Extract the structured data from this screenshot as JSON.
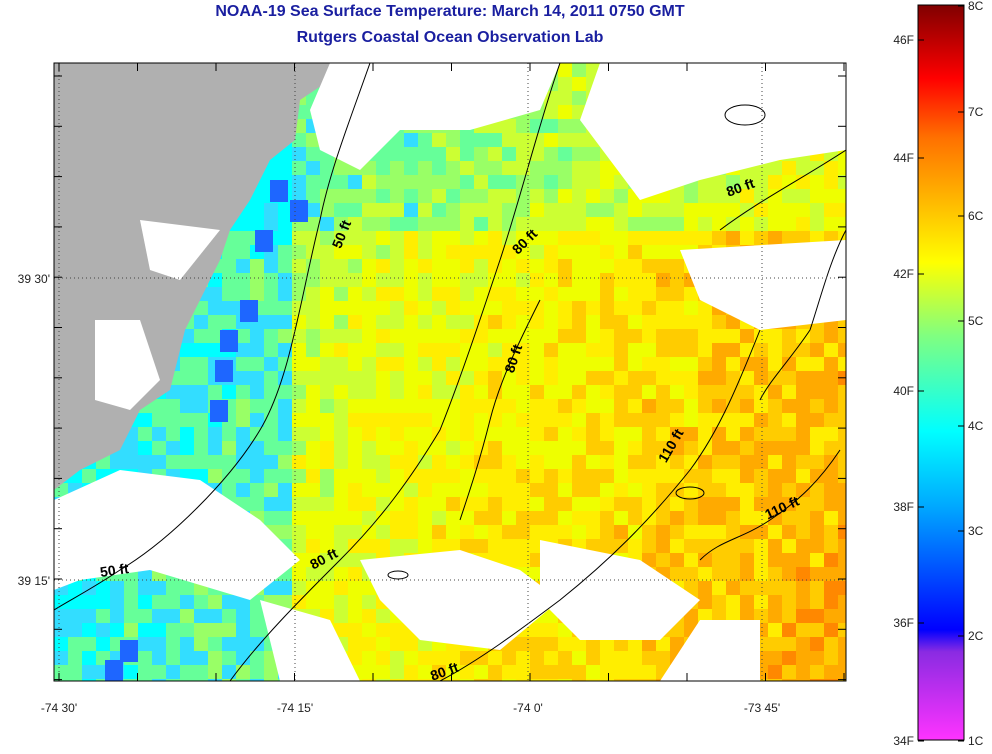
{
  "header": {
    "title": "NOAA-19 Sea Surface Temperature:  March 14, 2011 0750 GMT",
    "subtitle": "Rutgers Coastal Ocean Observation Lab"
  },
  "map": {
    "x_ticks": [
      "-74 30'",
      "-74 15'",
      "-74 0'",
      "-73 45'"
    ],
    "y_ticks": [
      "39 30'",
      "39 15'"
    ],
    "contour_labels": [
      "50 ft",
      "50 ft",
      "80 ft",
      "80 ft",
      "80 ft",
      "80 ft",
      "80 ft",
      "110 ft",
      "110 ft"
    ],
    "colors": {
      "land": "#b0b0b0",
      "cloud": "#ffffff"
    }
  },
  "colorbar": {
    "fahrenheit_labels": [
      "46F",
      "44F",
      "42F",
      "40F",
      "38F",
      "36F",
      "34F"
    ],
    "celsius_labels": [
      "8C",
      "7C",
      "6C",
      "5C",
      "4C",
      "3C",
      "2C",
      "1C"
    ],
    "colors": [
      "#ff33ff",
      "#8a2be2",
      "#0000ff",
      "#00ffff",
      "#ffff00",
      "#ff8000",
      "#ff0000",
      "#800000"
    ]
  }
}
